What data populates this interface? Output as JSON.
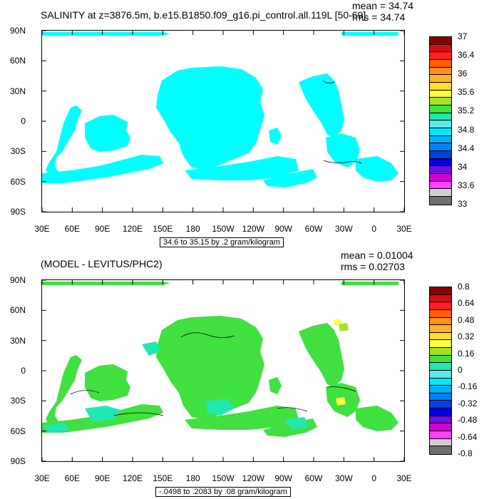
{
  "top": {
    "title": "SALINITY at z=3876.5m, b.e15.B1850.f09_g16.pi_control.all.119L [50-69]",
    "mean": "mean = 34.74",
    "rms": "rms = 34.74",
    "contour_info": "34.6 to 35.15 by .2 gram/kilogram",
    "lat_labels": [
      "90N",
      "60N",
      "30N",
      "0",
      "30S",
      "60S",
      "90S"
    ],
    "lon_labels": [
      "30E",
      "60E",
      "90E",
      "120E",
      "150E",
      "180",
      "150W",
      "120W",
      "90W",
      "60W",
      "30W",
      "0",
      "30E"
    ],
    "colorbar_labels": [
      "37",
      "36.4",
      "36",
      "35.6",
      "35.2",
      "34.8",
      "34.4",
      "34",
      "33.6",
      "33"
    ],
    "colors": [
      "#8b0000",
      "#d01010",
      "#ff2020",
      "#ff6000",
      "#ff9020",
      "#ffb030",
      "#ffdc30",
      "#ffff40",
      "#a8e028",
      "#40e040",
      "#20e8b0",
      "#60e8e8",
      "#00e8ff",
      "#00b0ff",
      "#0080ff",
      "#0040e0",
      "#0000e0",
      "#7010e0",
      "#d000d0",
      "#ff40ff",
      "#d0d0d0",
      "#707070"
    ],
    "fill_color": "#00ffff"
  },
  "bottom": {
    "title": "(MODEL - LEVITUS/PHC2)",
    "mean": "mean = 0.01004",
    "rms": "rms = 0.02703",
    "contour_info": "-.0498 to .2083 by .08 gram/kilogram",
    "lat_labels": [
      "90N",
      "60N",
      "30N",
      "0",
      "30S",
      "60S",
      "90S"
    ],
    "lon_labels": [
      "30E",
      "60E",
      "90E",
      "120E",
      "150E",
      "180",
      "150W",
      "120W",
      "90W",
      "60W",
      "30W",
      "0",
      "30E"
    ],
    "colorbar_labels": [
      "0.8",
      "0.64",
      "0.48",
      "0.32",
      "0.16",
      "0",
      "-0.16",
      "-0.32",
      "-0.48",
      "-0.64",
      "-0.8"
    ],
    "colors": [
      "#8b0000",
      "#d01010",
      "#ff2020",
      "#ff6000",
      "#ff9020",
      "#ffb030",
      "#ffdc30",
      "#ffff40",
      "#a8e028",
      "#40e040",
      "#20e8b0",
      "#60e8e8",
      "#00e8ff",
      "#00b0ff",
      "#0080ff",
      "#0040e0",
      "#0000e0",
      "#7010e0",
      "#d000d0",
      "#ff40ff",
      "#d0d0d0",
      "#707070"
    ],
    "fill_color": "#40e040",
    "secondary_color": "#20e8b0"
  }
}
